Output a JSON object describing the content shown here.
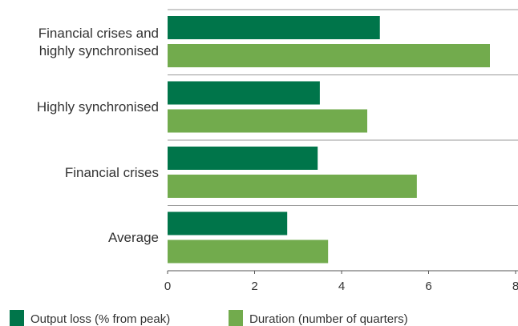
{
  "chart_data": {
    "type": "bar",
    "orientation": "horizontal",
    "categories": [
      "Financial crises and highly synchronised",
      "Highly synchronised",
      "Financial crises",
      "Average"
    ],
    "series": [
      {
        "name": "Output loss (% from peak)",
        "color": "#00754a",
        "values": [
          4.88,
          3.5,
          3.45,
          2.75
        ]
      },
      {
        "name": "Duration (number of quarters)",
        "color": "#72ab4d",
        "values": [
          7.41,
          4.59,
          5.73,
          3.69
        ]
      }
    ],
    "xlim": [
      0,
      8
    ],
    "xticks": [
      0,
      2,
      4,
      6,
      8
    ],
    "legend": "bottom"
  }
}
